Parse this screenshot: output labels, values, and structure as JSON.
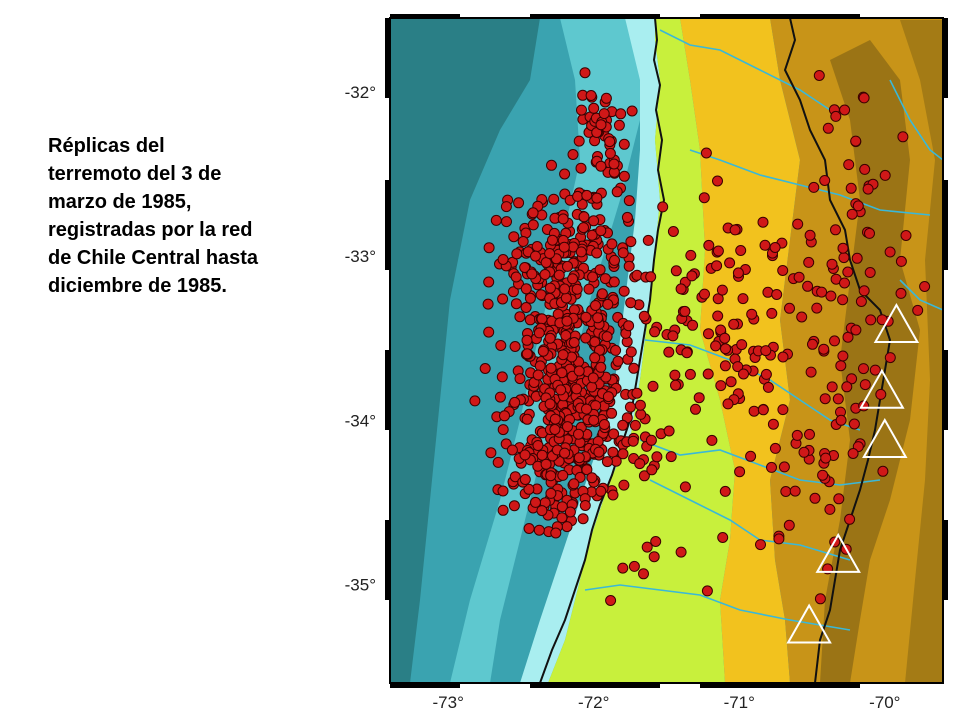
{
  "caption": {
    "lines": [
      "Réplicas del",
      "terremoto del 3 de",
      "marzo de 1985,",
      "registradas por la red",
      "de Chile Central hasta",
      "diciembre de 1985."
    ]
  },
  "map": {
    "lon_range": [
      -73.4,
      -69.6
    ],
    "lat_range": [
      -35.6,
      -31.55
    ],
    "x_tick_labels": [
      "-73°",
      "-72°",
      "-71°",
      "-70°"
    ],
    "x_tick_values": [
      -73,
      -72,
      -71,
      -70
    ],
    "y_tick_labels": [
      "-32°",
      "-33°",
      "-34°",
      "-35°"
    ],
    "y_tick_values": [
      -32,
      -33,
      -34,
      -35
    ],
    "colors": {
      "deep_ocean": "#2a7f86",
      "mid_ocean": "#3aa3b0",
      "slope": "#5ec8cf",
      "shelf": "#a9eef0",
      "lowland": "#c8f03c",
      "foothill": "#f2c21e",
      "mountain": "#c89418",
      "high_mountain": "#8c6a14",
      "river": "#3ab8d8",
      "coast": "#111111",
      "border": "#111111",
      "epicenter_fill": "#d01818",
      "epicenter_stroke": "#3a0000",
      "station_stroke": "#ffffff"
    }
  },
  "chart_data": {
    "type": "scatter",
    "title": "",
    "xlabel": "",
    "ylabel": "",
    "xlim": [
      -73.4,
      -69.6
    ],
    "ylim": [
      -35.6,
      -31.55
    ],
    "x_ticks": [
      -73,
      -72,
      -71,
      -70
    ],
    "y_ticks": [
      -32,
      -33,
      -34,
      -35
    ],
    "series": [
      {
        "marker": "circle",
        "color": "#d01818",
        "sample_points": [
          [
            -72.0,
            -32.1
          ],
          [
            -71.95,
            -32.2
          ],
          [
            -72.1,
            -32.3
          ],
          [
            -72.2,
            -32.5
          ],
          [
            -72.4,
            -33.0
          ],
          [
            -72.2,
            -33.2
          ],
          [
            -72.3,
            -33.5
          ],
          [
            -72.1,
            -33.7
          ],
          [
            -72.3,
            -33.9
          ],
          [
            -72.0,
            -34.0
          ],
          [
            -72.2,
            -34.2
          ],
          [
            -72.4,
            -34.5
          ],
          [
            -71.4,
            -33.2
          ],
          [
            -71.1,
            -33.5
          ],
          [
            -70.8,
            -33.8
          ],
          [
            -70.3,
            -34.0
          ],
          [
            -70.1,
            -33.1
          ],
          [
            -70.2,
            -32.3
          ],
          [
            -70.45,
            -31.9
          ],
          [
            -71.8,
            -34.9
          ]
        ],
        "cluster_count": 900
      }
    ],
    "stations": [
      [
        -69.92,
        -33.42
      ],
      [
        -70.02,
        -33.82
      ],
      [
        -70.0,
        -34.12
      ],
      [
        -70.32,
        -34.82
      ],
      [
        -70.52,
        -35.25
      ]
    ]
  }
}
